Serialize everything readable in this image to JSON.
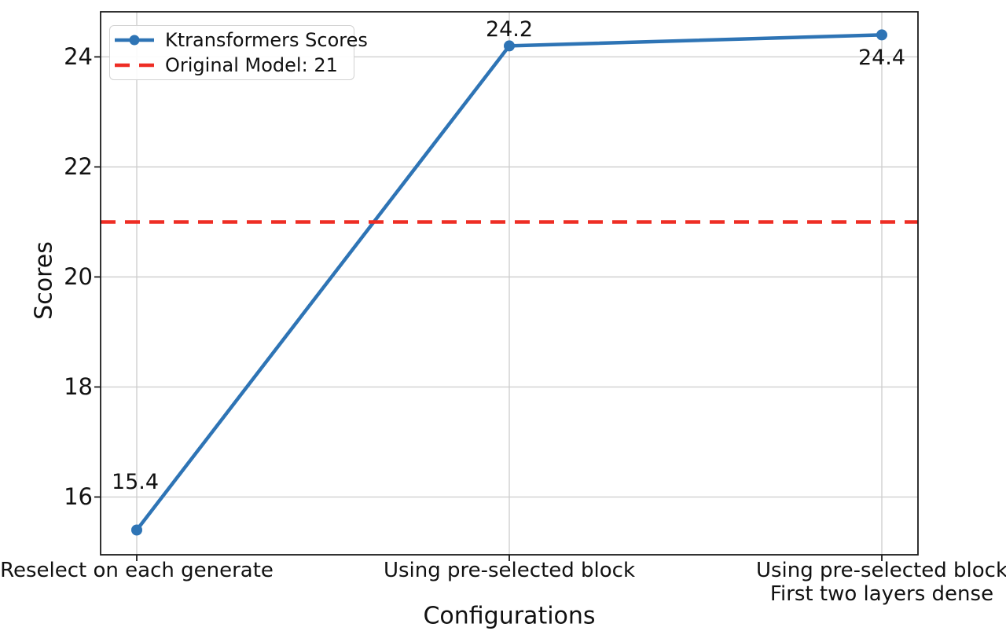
{
  "chart_data": {
    "type": "line",
    "title": "",
    "xlabel": "Configurations",
    "ylabel": "Scores",
    "categories": [
      "Reselect on each generate",
      "Using pre-selected block",
      "Using pre-selected block\nFirst two layers dense"
    ],
    "series": [
      {
        "name": "Ktransformers Scores",
        "values": [
          15.4,
          24.2,
          24.4
        ],
        "point_labels": [
          "15.4",
          "24.2",
          "24.4"
        ],
        "color": "#2e74b5",
        "marker": "circle",
        "line_style": "solid"
      }
    ],
    "reference_line": {
      "label": "Original Model: 21",
      "value": 21,
      "color": "#ee2d24",
      "style": "dashed"
    },
    "yticks": [
      16,
      18,
      20,
      22,
      24
    ],
    "ylim": [
      14.95,
      24.82
    ],
    "grid": true,
    "legend": {
      "position": "upper-left",
      "entries": [
        "Ktransformers Scores",
        "Original Model: 21"
      ]
    },
    "colors": {
      "grid": "#cccccc",
      "spine": "#1c1c1c",
      "text": "#111111",
      "background": "#ffffff"
    }
  }
}
